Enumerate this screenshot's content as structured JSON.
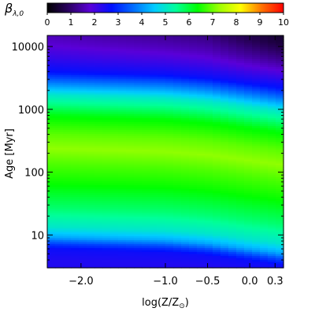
{
  "chart_data": {
    "type": "heatmap",
    "colorbar": {
      "label_main": "β",
      "label_sub": "λ,0",
      "range": [
        0,
        10
      ],
      "ticks": [
        "0",
        "1",
        "2",
        "3",
        "4",
        "5",
        "6",
        "7",
        "8",
        "9",
        "10"
      ],
      "colormap": [
        "#000000",
        "#2b0062",
        "#5a00d8",
        "#0010ff",
        "#006cff",
        "#00ccff",
        "#00ff98",
        "#00ff00",
        "#9cff00",
        "#ffff00",
        "#ff7000",
        "#ff0000"
      ]
    },
    "x_axis": {
      "label_main": "log(Z/Z",
      "label_sun": "⊙",
      "label_end": ")",
      "range": [
        -2.4,
        0.4
      ],
      "ticks": [
        {
          "value": -2.0,
          "label": "−2.0"
        },
        {
          "value": -1.0,
          "label": "−1.0"
        },
        {
          "value": -0.5,
          "label": "−0.5"
        },
        {
          "value": 0.0,
          "label": "0.0"
        },
        {
          "value": 0.3,
          "label": "0.3"
        }
      ]
    },
    "y_axis": {
      "label": "Age [Myr]",
      "scale": "log",
      "range": [
        3,
        15000
      ],
      "ticks": [
        {
          "value": 10,
          "label": "10"
        },
        {
          "value": 100,
          "label": "100"
        },
        {
          "value": 1000,
          "label": "1000"
        },
        {
          "value": 10000,
          "label": "10000"
        }
      ]
    },
    "beta_profile": [
      {
        "age": 3,
        "beta": 2.4
      },
      {
        "age": 4.5,
        "beta": 2.6
      },
      {
        "age": 5.5,
        "beta": 3.2
      },
      {
        "age": 7,
        "beta": 4.2
      },
      {
        "age": 10,
        "beta": 5.0
      },
      {
        "age": 20,
        "beta": 5.7
      },
      {
        "age": 50,
        "beta": 6.4
      },
      {
        "age": 100,
        "beta": 6.8
      },
      {
        "age": 180,
        "beta": 7.2
      },
      {
        "age": 300,
        "beta": 6.9
      },
      {
        "age": 600,
        "beta": 6.3
      },
      {
        "age": 900,
        "beta": 5.6
      },
      {
        "age": 1300,
        "beta": 5.0
      },
      {
        "age": 2000,
        "beta": 3.8
      },
      {
        "age": 3000,
        "beta": 2.7
      },
      {
        "age": 5000,
        "beta": 2.2
      },
      {
        "age": 8000,
        "beta": 1.8
      },
      {
        "age": 15000,
        "beta": 1.4
      }
    ],
    "metallicity_age_shift_dex": [
      {
        "logZ": -2.4,
        "shift": 0.12
      },
      {
        "logZ": -1.0,
        "shift": 0.07
      },
      {
        "logZ": -0.5,
        "shift": 0.02
      },
      {
        "logZ": 0.0,
        "shift": -0.07
      },
      {
        "logZ": 0.4,
        "shift": -0.14
      }
    ],
    "old_age_darkening": [
      {
        "logZ": -2.4,
        "delta": 0.0
      },
      {
        "logZ": -0.5,
        "delta": -0.3
      },
      {
        "logZ": 0.4,
        "delta": -1.0
      }
    ]
  }
}
